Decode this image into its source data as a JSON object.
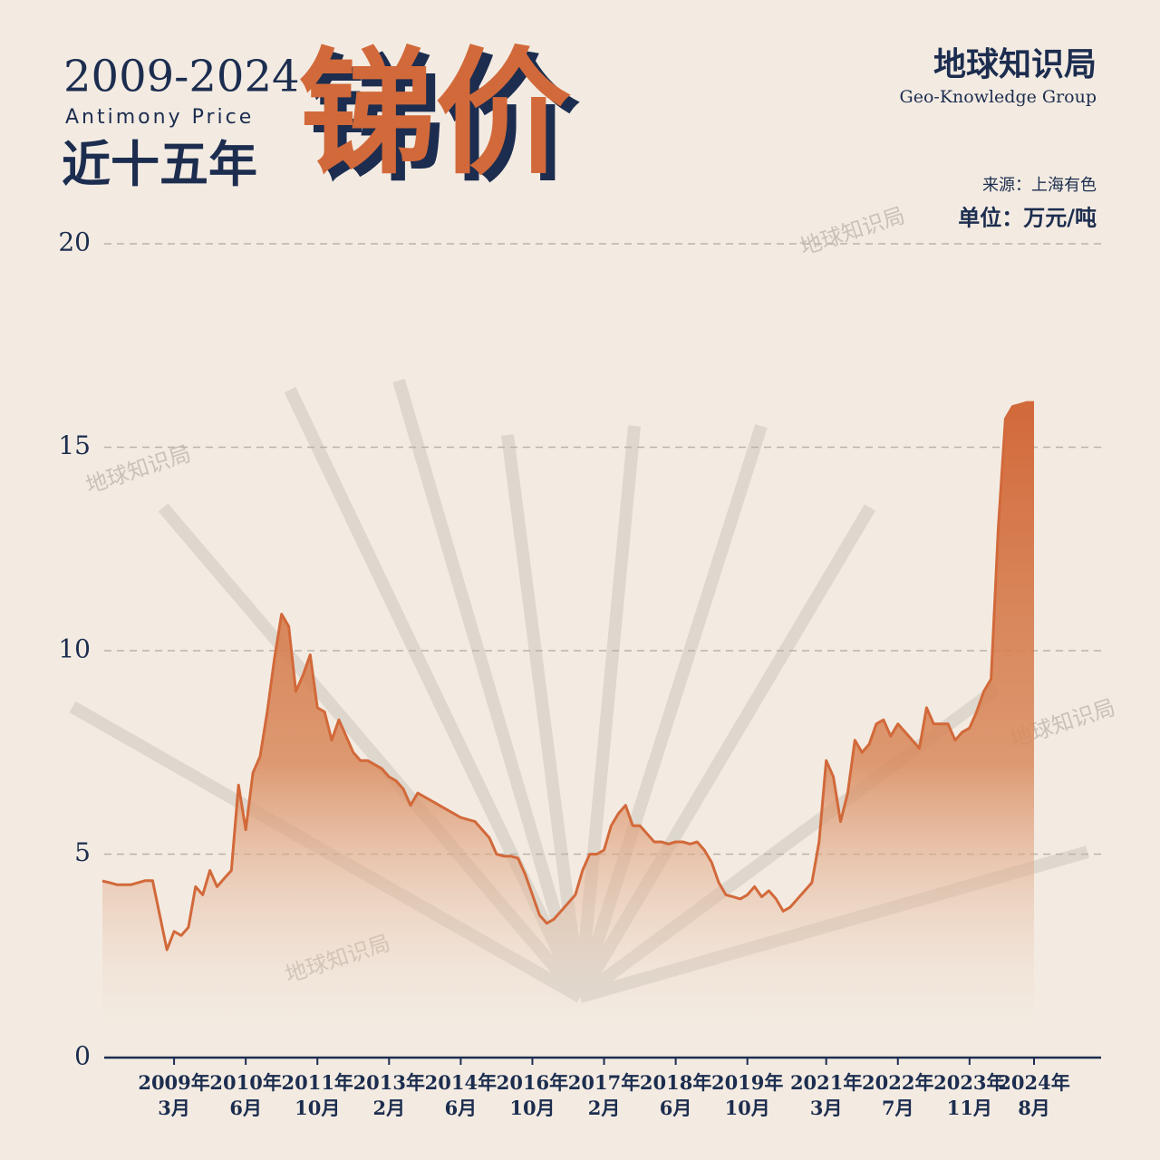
{
  "title_block": {
    "years": "2009-2024",
    "subtitle_en": "Antimony Price",
    "subtitle_cn": "近十五年",
    "title": "锑价"
  },
  "brand": {
    "name": "地球知识局",
    "name_en": "Geo-Knowledge Group"
  },
  "source": "来源：上海有色",
  "unit": "单位：万元/吨",
  "watermark": "地球知识局",
  "chart_data": {
    "type": "area",
    "categories": [
      null,
      null,
      null,
      null,
      null,
      null,
      null,
      null,
      null,
      null,
      "2009年\n3月",
      null,
      null,
      null,
      null,
      null,
      null,
      null,
      null,
      null,
      "2010年\n6月",
      null,
      null,
      null,
      null,
      null,
      null,
      null,
      null,
      null,
      "2011年\n10月",
      null,
      null,
      null,
      null,
      null,
      null,
      null,
      null,
      null,
      "2013年\n2月",
      null,
      null,
      null,
      null,
      null,
      null,
      null,
      null,
      null,
      "2014年\n6月",
      null,
      null,
      null,
      null,
      null,
      null,
      null,
      null,
      null,
      "2016年\n10月",
      null,
      null,
      null,
      null,
      null,
      null,
      null,
      null,
      null,
      "2017年\n2月",
      null,
      null,
      null,
      null,
      null,
      null,
      null,
      null,
      null,
      "2018年\n6月",
      null,
      null,
      null,
      null,
      null,
      null,
      null,
      null,
      null,
      "2019年\n10月",
      null,
      null,
      null,
      null,
      null,
      null,
      null,
      null,
      null,
      null,
      "2021年\n3月",
      null,
      null,
      null,
      null,
      null,
      null,
      null,
      null,
      null,
      "2022年\n7月",
      null,
      null,
      null,
      null,
      null,
      null,
      null,
      null,
      null,
      "2023年\n11月",
      null,
      null,
      null,
      null,
      null,
      null,
      null,
      null,
      "2024年\n8月"
    ],
    "series": [
      {
        "name": "锑价",
        "color": "#d2693a",
        "values": [
          4.34,
          4.3,
          4.25,
          4.25,
          4.25,
          4.3,
          4.35,
          4.35,
          3.5,
          2.65,
          3.1,
          3.0,
          3.2,
          4.2,
          4.0,
          4.6,
          4.2,
          4.4,
          4.6,
          6.7,
          5.6,
          7.0,
          7.4,
          8.5,
          9.8,
          10.9,
          10.6,
          9.0,
          9.4,
          9.9,
          8.6,
          8.5,
          7.8,
          8.3,
          7.9,
          7.5,
          7.3,
          7.3,
          7.2,
          7.1,
          6.9,
          6.8,
          6.6,
          6.2,
          6.5,
          6.4,
          6.3,
          6.2,
          6.1,
          6.0,
          5.9,
          5.85,
          5.8,
          5.6,
          5.4,
          5.0,
          4.95,
          4.95,
          4.9,
          4.5,
          4.0,
          3.5,
          3.3,
          3.4,
          3.6,
          3.8,
          4.0,
          4.6,
          5.0,
          5.0,
          5.1,
          5.7,
          6.0,
          6.2,
          5.7,
          5.7,
          5.5,
          5.3,
          5.3,
          5.25,
          5.3,
          5.3,
          5.25,
          5.3,
          5.1,
          4.8,
          4.3,
          4.0,
          3.95,
          3.9,
          4.0,
          4.2,
          3.95,
          4.1,
          3.9,
          3.6,
          3.7,
          3.9,
          4.1,
          4.3,
          5.3,
          7.3,
          6.9,
          5.8,
          6.5,
          7.8,
          7.5,
          7.7,
          8.2,
          8.3,
          7.9,
          8.2,
          8.0,
          7.8,
          7.6,
          8.6,
          8.2,
          8.2,
          8.2,
          7.8,
          8.0,
          8.1,
          8.5,
          9.0,
          9.3,
          13.0,
          15.7,
          16.0,
          16.05,
          16.1,
          16.1
        ]
      }
    ],
    "ylim": [
      0,
      20
    ],
    "yticks": [
      0,
      5,
      10,
      15,
      20
    ],
    "grid": true
  }
}
